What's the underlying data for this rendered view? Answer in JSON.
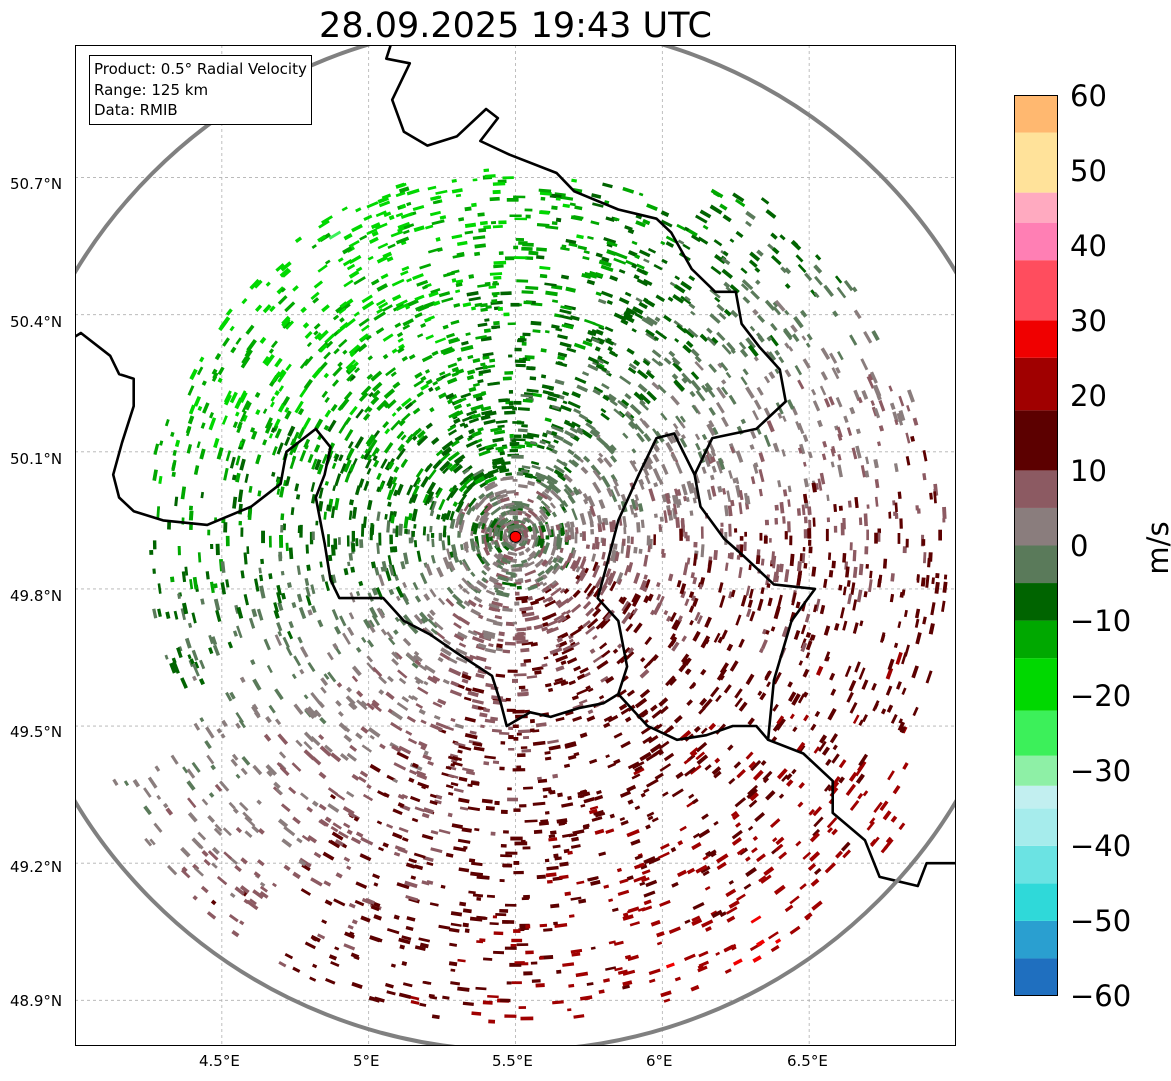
{
  "title": "28.09.2025 19:43 UTC",
  "info_box": {
    "product": "Product: 0.5° Radial Velocity",
    "range": "Range: 125 km",
    "source": "Data: RMIB"
  },
  "axes": {
    "y_ticks": [
      "50.7°N",
      "50.4°N",
      "50.1°N",
      "49.8°N",
      "49.5°N",
      "49.2°N",
      "48.9°N"
    ],
    "x_ticks": [
      "4.5°E",
      "5°E",
      "5.5°E",
      "6°E",
      "6.5°E"
    ],
    "lon_range": [
      4.0,
      7.0
    ],
    "lat_range": [
      48.8,
      50.99
    ],
    "grid": true
  },
  "radar": {
    "site_lon": 5.5,
    "site_lat": 49.914,
    "range_km": 125,
    "site_marker_color": "#ff0000",
    "range_ring_color": "#808080"
  },
  "colorbar": {
    "unit": "m/s",
    "vmin": -60,
    "vmax": 60,
    "tick_labels": [
      "60",
      "50",
      "40",
      "30",
      "20",
      "10",
      "0",
      "−10",
      "−20",
      "−30",
      "−40",
      "−50",
      "−60"
    ],
    "palette": [
      {
        "v": -60,
        "color": "#1f6fbf"
      },
      {
        "v": -55,
        "color": "#2a9fd0"
      },
      {
        "v": -50,
        "color": "#2fd9d9"
      },
      {
        "v": -45,
        "color": "#6be3e3"
      },
      {
        "v": -40,
        "color": "#a6ecec"
      },
      {
        "v": -35,
        "color": "#c2eff0"
      },
      {
        "v": -32,
        "color": "#8ef0a6"
      },
      {
        "v": -28,
        "color": "#3cf05a"
      },
      {
        "v": -22,
        "color": "#00d800"
      },
      {
        "v": -15,
        "color": "#00a800"
      },
      {
        "v": -10,
        "color": "#006400"
      },
      {
        "v": -5,
        "color": "#5a7a5a"
      },
      {
        "v": 0,
        "color": "#8a7d7d"
      },
      {
        "v": 5,
        "color": "#8c5a62"
      },
      {
        "v": 10,
        "color": "#5c0000"
      },
      {
        "v": 18,
        "color": "#a00000"
      },
      {
        "v": 25,
        "color": "#f00000"
      },
      {
        "v": 30,
        "color": "#ff4d5e"
      },
      {
        "v": 38,
        "color": "#ff7fb4"
      },
      {
        "v": 43,
        "color": "#ffaac0"
      },
      {
        "v": 47,
        "color": "#ffe29a"
      },
      {
        "v": 55,
        "color": "#ffb870"
      },
      {
        "v": 60,
        "color": "#ff9a50"
      }
    ]
  },
  "map_colors": {
    "border": "#000000",
    "grid": "#b0b0b0"
  }
}
